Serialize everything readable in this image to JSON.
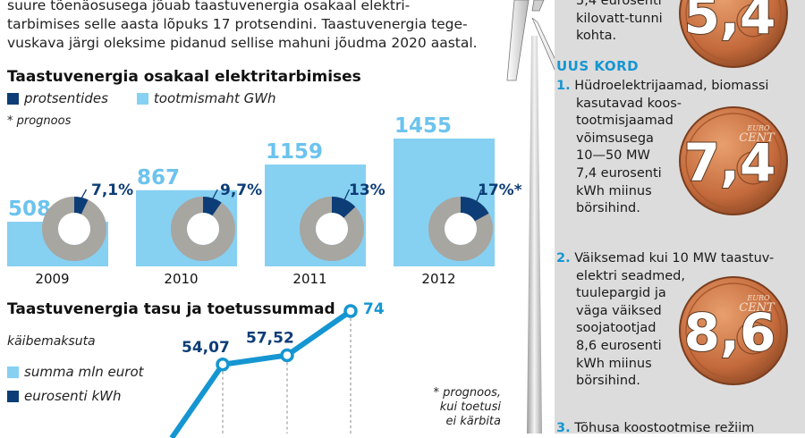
{
  "intro": {
    "lines": [
      "suure tõenäosusega jõuab taastuvenergia osakaal elektri-",
      "tarbimises selle aasta lõpuks 17 protsendini. Taastuvenergia tege-",
      "vuskava järgi oleksime pidanud sellise mahuni jõudma 2020 aastal."
    ]
  },
  "chart_data": [
    {
      "type": "bar",
      "title": "Taastuvenergia osakaal elektritarbimises",
      "legend": [
        {
          "label": "protsentides",
          "color": "#0d3d77"
        },
        {
          "label": "tootmismaht GWh",
          "color": "#86d0f2"
        }
      ],
      "note": "* prognoos",
      "categories": [
        "2009",
        "2010",
        "2011",
        "2012"
      ],
      "series": [
        {
          "name": "tootmismaht GWh",
          "values": [
            508,
            867,
            1159,
            1455
          ],
          "labels": [
            "508",
            "867",
            "1159",
            "1455"
          ]
        },
        {
          "name": "protsentides",
          "values": [
            7.1,
            9.7,
            13,
            17
          ],
          "labels": [
            "7,1%",
            "9,7%",
            "13%",
            "17%*"
          ]
        }
      ],
      "colors": {
        "bar": "#86d0f2",
        "share": "#0d3d77",
        "rest": "#a8a6a0",
        "value_text": "#0d3d77",
        "bar_text": "#6cc3ee"
      }
    },
    {
      "type": "line",
      "title": "Taastuvenergia tasu ja toetussummad",
      "legend_title": "käibemaksuta",
      "legend": [
        {
          "label": "summa mln eurot",
          "color": "#86d0f2"
        },
        {
          "label": "eurosenti kWh",
          "color": "#0d3d77"
        }
      ],
      "series": [
        {
          "name": "summa mln eurot",
          "values": [
            54.07,
            57.52,
            74
          ],
          "labels": [
            "54,07",
            "57,52",
            "74"
          ]
        }
      ],
      "note_lines": [
        "* prognoos,",
        "kui toetusi",
        "ei kärbita"
      ],
      "colors": {
        "line": "#1596d2",
        "label": "#0d3d77",
        "label_last": "#1596d2"
      }
    }
  ],
  "right": {
    "top_lines": [
      "5,4 eurosenti",
      "kilovatt-tunni",
      "kohta."
    ],
    "top_coin": "5,4",
    "heading": "UUS KORD",
    "items": [
      {
        "num": "1.",
        "lines": [
          "Hüdroelektrijaamad, biomassi",
          "kasutavad koos-",
          "tootmisjaamad",
          "võimsusega",
          "10—50 MW",
          "7,4 eurosenti",
          "kWh miinus",
          "börsihind."
        ],
        "coin": "7,4"
      },
      {
        "num": "2.",
        "lines": [
          "Väiksemad kui 10 MW taastuv-",
          "elektri seadmed,",
          "tuulepargid ja",
          "väga väiksed",
          "soojatootjad",
          "8,6 eurosenti",
          "kWh miinus",
          "börsihind."
        ],
        "coin": "8,6"
      },
      {
        "num": "3.",
        "lines": [
          "Tõhusa koostootmise režiim"
        ]
      }
    ],
    "coin_label_1": "EURO",
    "coin_label_2": "CENT"
  }
}
